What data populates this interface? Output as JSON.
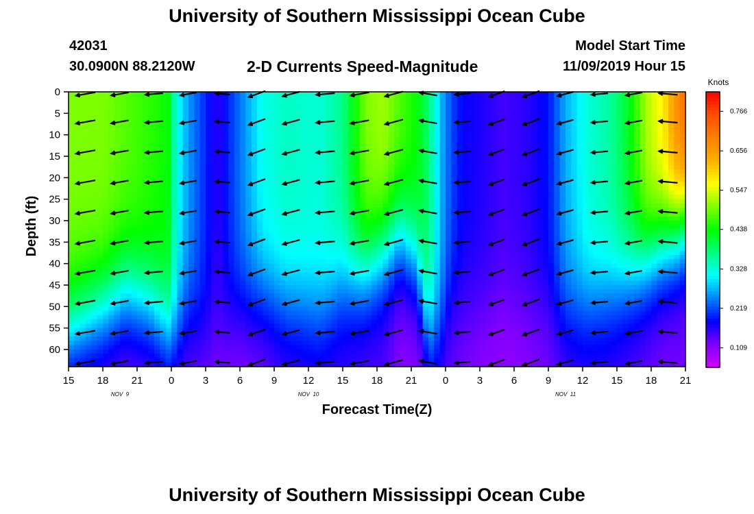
{
  "header": {
    "title_top": "University of Southern Mississippi Ocean Cube",
    "title_bottom": "University of Southern Mississippi Ocean Cube",
    "station_id": "42031",
    "station_position": "30.0900N 88.2120W",
    "plot_title": "2-D Currents Speed-Magnitude",
    "model_start_label": "Model Start Time",
    "model_start_value": "11/09/2019 Hour 15"
  },
  "chart_data": {
    "type": "heatmap",
    "title": "2-D Currents Speed-Magnitude",
    "xlabel": "Forecast Time(Z)",
    "ylabel": "Depth (ft)",
    "x_range_hours": [
      0,
      54
    ],
    "x_ticks": [
      {
        "h": 0,
        "label": "15"
      },
      {
        "h": 3,
        "label": "18"
      },
      {
        "h": 6,
        "label": "21"
      },
      {
        "h": 9,
        "label": "0"
      },
      {
        "h": 12,
        "label": "3"
      },
      {
        "h": 15,
        "label": "6"
      },
      {
        "h": 18,
        "label": "9"
      },
      {
        "h": 21,
        "label": "12"
      },
      {
        "h": 24,
        "label": "15"
      },
      {
        "h": 27,
        "label": "18"
      },
      {
        "h": 30,
        "label": "21"
      },
      {
        "h": 33,
        "label": "0"
      },
      {
        "h": 36,
        "label": "3"
      },
      {
        "h": 39,
        "label": "6"
      },
      {
        "h": 42,
        "label": "9"
      },
      {
        "h": 45,
        "label": "12"
      },
      {
        "h": 48,
        "label": "15"
      },
      {
        "h": 51,
        "label": "18"
      },
      {
        "h": 54,
        "label": "21"
      }
    ],
    "date_labels": [
      {
        "h": 4.5,
        "label": "NOV  9"
      },
      {
        "h": 21,
        "label": "NOV  10"
      },
      {
        "h": 43.5,
        "label": "NOV  11"
      }
    ],
    "y_range_ft": [
      0,
      64
    ],
    "y_ticks": [
      0,
      5,
      10,
      15,
      20,
      25,
      30,
      35,
      40,
      45,
      50,
      55,
      60
    ],
    "colorbar": {
      "unit_label": "Knots",
      "min": 0.055,
      "max": 0.82,
      "tick_values": [
        0.766,
        0.656,
        0.547,
        0.438,
        0.328,
        0.219,
        0.109
      ],
      "tick_labels": [
        "0.766",
        "0.656",
        "0.547",
        "0.438",
        "0.328",
        "0.219",
        "0.109"
      ],
      "colors": [
        "#d000ff",
        "#8000ff",
        "#0000ff",
        "#0080ff",
        "#00ffff",
        "#00ff80",
        "#00ff00",
        "#80ff00",
        "#ffff00",
        "#ffb000",
        "#ff8000",
        "#ff5000",
        "#ff0000"
      ]
    },
    "speed_profiles": [
      {
        "h": 0,
        "top": 0.5,
        "bottom": 0.11,
        "mid": 56
      },
      {
        "h": 3,
        "top": 0.5,
        "bottom": 0.12,
        "mid": 51
      },
      {
        "h": 5,
        "top": 0.48,
        "bottom": 0.12,
        "mid": 47
      },
      {
        "h": 7,
        "top": 0.46,
        "bottom": 0.12,
        "mid": 50
      },
      {
        "h": 8.7,
        "top": 0.44,
        "bottom": 0.12,
        "mid": 56
      },
      {
        "h": 9.5,
        "top": 0.32,
        "bottom": 0.11,
        "mid": 58
      },
      {
        "h": 10.5,
        "top": 0.26,
        "bottom": 0.13,
        "mid": 52
      },
      {
        "h": 12,
        "top": 0.2,
        "bottom": 0.12,
        "mid": 56
      },
      {
        "h": 13,
        "top": 0.16,
        "bottom": 0.12,
        "mid": 55
      },
      {
        "h": 15,
        "top": 0.24,
        "bottom": 0.11,
        "mid": 50
      },
      {
        "h": 17,
        "top": 0.32,
        "bottom": 0.12,
        "mid": 48
      },
      {
        "h": 19,
        "top": 0.34,
        "bottom": 0.14,
        "mid": 50
      },
      {
        "h": 22,
        "top": 0.33,
        "bottom": 0.15,
        "mid": 52
      },
      {
        "h": 24,
        "top": 0.37,
        "bottom": 0.15,
        "mid": 45
      },
      {
        "h": 26,
        "top": 0.5,
        "bottom": 0.14,
        "mid": 42
      },
      {
        "h": 27.5,
        "top": 0.52,
        "bottom": 0.14,
        "mid": 38
      },
      {
        "h": 29,
        "top": 0.48,
        "bottom": 0.11,
        "mid": 34
      },
      {
        "h": 30.5,
        "top": 0.44,
        "bottom": 0.11,
        "mid": 40
      },
      {
        "h": 31.5,
        "top": 0.38,
        "bottom": 0.12,
        "mid": 58
      },
      {
        "h": 32.5,
        "top": 0.28,
        "bottom": 0.14,
        "mid": 56
      },
      {
        "h": 33.5,
        "top": 0.22,
        "bottom": 0.13,
        "mid": 48
      },
      {
        "h": 34.5,
        "top": 0.18,
        "bottom": 0.12,
        "mid": 50
      },
      {
        "h": 36,
        "top": 0.17,
        "bottom": 0.11,
        "mid": 50
      },
      {
        "h": 38,
        "top": 0.15,
        "bottom": 0.1,
        "mid": 50
      },
      {
        "h": 40,
        "top": 0.16,
        "bottom": 0.11,
        "mid": 50
      },
      {
        "h": 42,
        "top": 0.19,
        "bottom": 0.12,
        "mid": 50
      },
      {
        "h": 43.5,
        "top": 0.27,
        "bottom": 0.14,
        "mid": 52
      },
      {
        "h": 45.5,
        "top": 0.33,
        "bottom": 0.15,
        "mid": 50
      },
      {
        "h": 47.5,
        "top": 0.36,
        "bottom": 0.15,
        "mid": 47
      },
      {
        "h": 49,
        "top": 0.42,
        "bottom": 0.14,
        "mid": 44
      },
      {
        "h": 50.5,
        "top": 0.52,
        "bottom": 0.13,
        "mid": 40
      },
      {
        "h": 52,
        "top": 0.58,
        "bottom": 0.12,
        "mid": 36
      },
      {
        "h": 53.5,
        "top": 0.7,
        "bottom": 0.12,
        "mid": 32
      },
      {
        "h": 54,
        "top": 0.72,
        "bottom": 0.12,
        "mid": 30
      }
    ],
    "arrow_times_hours": [
      1.5,
      4.5,
      7.5,
      10.5,
      13.5,
      16.5,
      19.5,
      22.5,
      25.5,
      28.5,
      31.5,
      34.5,
      37.5,
      40.5,
      43.5,
      46.5,
      49.5,
      52.5
    ],
    "arrow_depths_ft": [
      0.5,
      7,
      14,
      21,
      28,
      35,
      42,
      49,
      56,
      63
    ],
    "arrow_dir_deg": [
      190,
      190,
      185,
      190,
      175,
      200,
      195,
      185,
      190,
      195,
      170,
      185,
      200,
      200,
      195,
      185,
      190,
      175
    ],
    "arrow_rel_length": [
      0.95,
      0.85,
      0.85,
      0.8,
      0.7,
      0.85,
      0.85,
      0.9,
      0.9,
      0.9,
      0.85,
      0.75,
      0.8,
      0.85,
      0.8,
      0.8,
      0.8,
      0.9
    ]
  }
}
